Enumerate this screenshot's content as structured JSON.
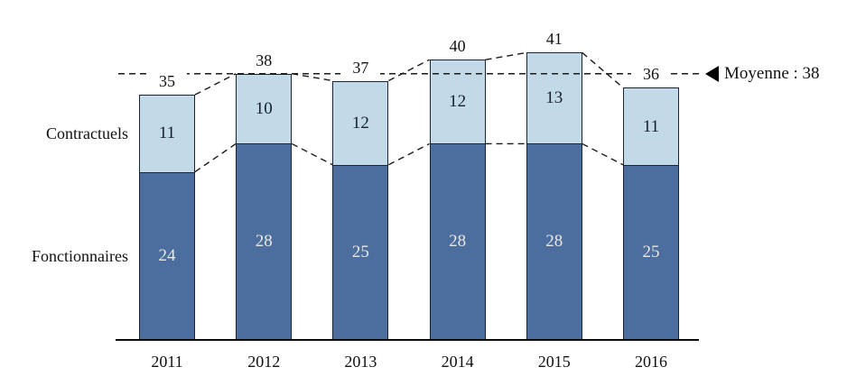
{
  "chart_data": {
    "type": "bar",
    "stacked": true,
    "categories": [
      "2011",
      "2012",
      "2013",
      "2014",
      "2015",
      "2016"
    ],
    "series": [
      {
        "name": "Fonctionnaires",
        "values": [
          24,
          28,
          25,
          28,
          28,
          25
        ],
        "color": "#4c6e9e",
        "label_color": "#ebe8e3"
      },
      {
        "name": "Contractuels",
        "values": [
          11,
          10,
          12,
          12,
          13,
          11
        ],
        "color": "#c2d9e8",
        "label_color": "#16202e"
      }
    ],
    "totals": [
      35,
      38,
      37,
      40,
      41,
      36
    ],
    "average": {
      "value": 38,
      "label": "Moyenne : 38",
      "marker": "left-triangle-icon"
    },
    "ylim": [
      0,
      45
    ],
    "grid": false,
    "legend_position": "left-of-bars",
    "connector_line_style": "dashed-black",
    "average_line_style": "dashed-black"
  }
}
